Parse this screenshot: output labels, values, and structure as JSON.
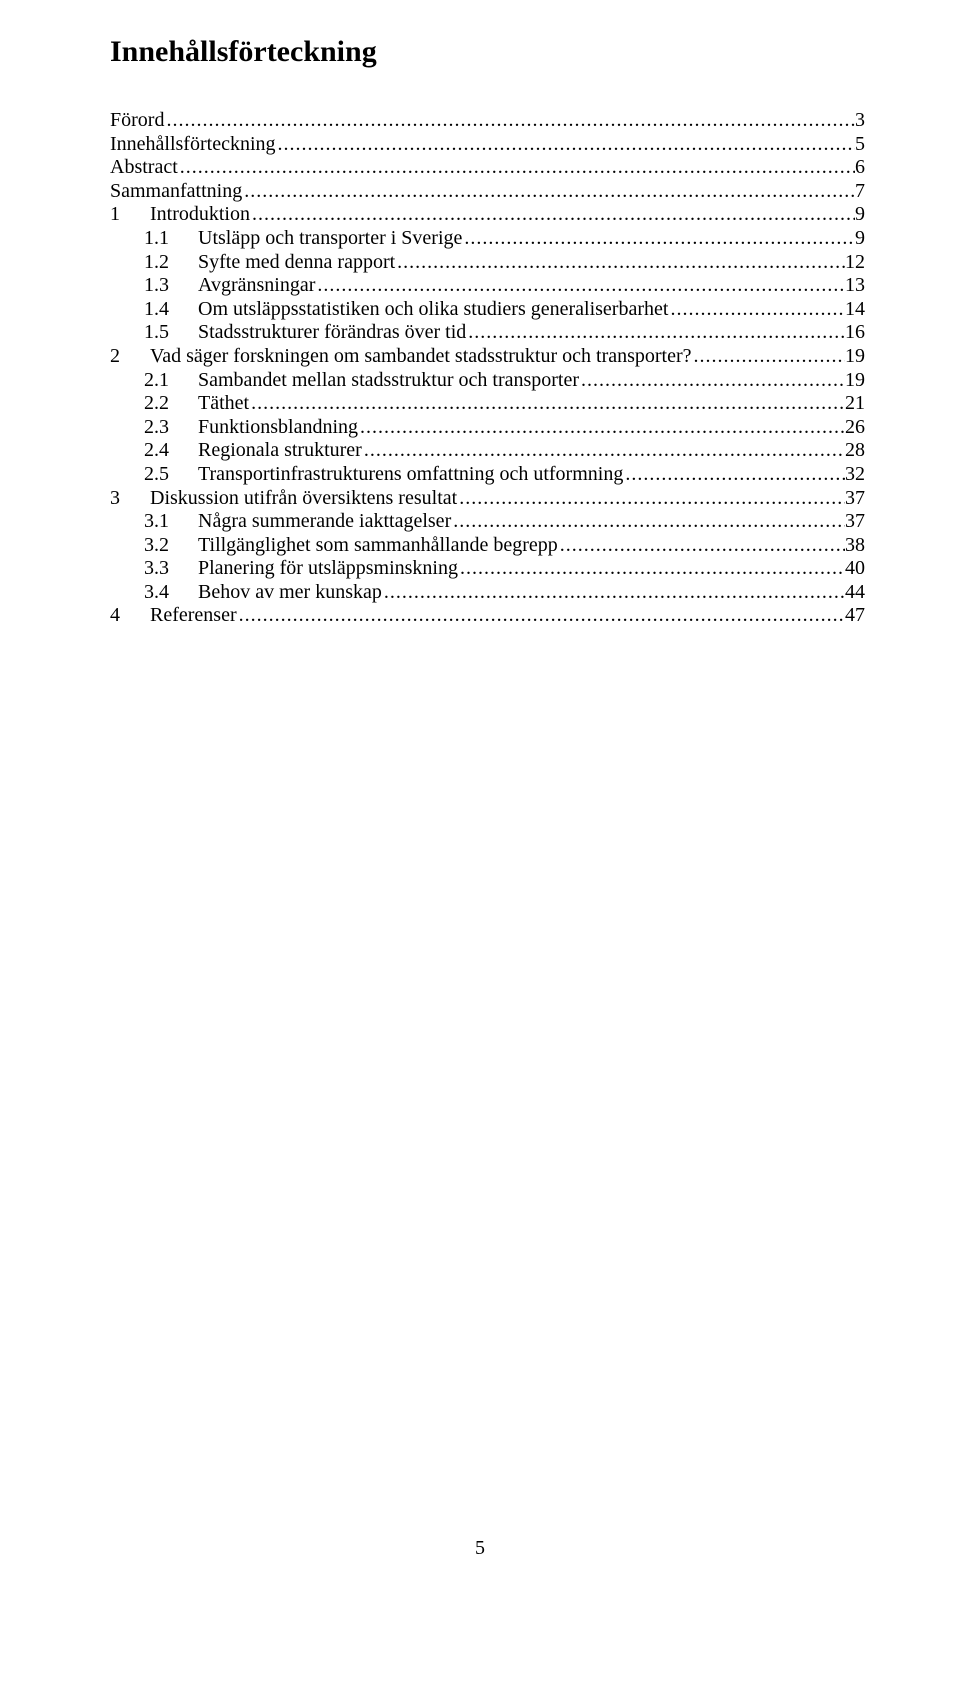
{
  "title": "Innehållsförteckning",
  "page_number": "5",
  "toc": [
    {
      "level": 0,
      "num": "",
      "text": "Förord",
      "page": "3"
    },
    {
      "level": 0,
      "num": "",
      "text": "Innehållsförteckning",
      "page": "5"
    },
    {
      "level": 0,
      "num": "",
      "text": "Abstract",
      "page": "6"
    },
    {
      "level": 0,
      "num": "",
      "text": "Sammanfattning",
      "page": "7"
    },
    {
      "level": 1,
      "num": "1",
      "text": "Introduktion",
      "page": "9"
    },
    {
      "level": 2,
      "num": "1.1",
      "text": "Utsläpp och transporter i Sverige",
      "page": "9"
    },
    {
      "level": 2,
      "num": "1.2",
      "text": "Syfte med denna rapport",
      "page": "12"
    },
    {
      "level": 2,
      "num": "1.3",
      "text": "Avgränsningar",
      "page": "13"
    },
    {
      "level": 2,
      "num": "1.4",
      "text": "Om utsläppsstatistiken och olika studiers generaliserbarhet",
      "page": "14"
    },
    {
      "level": 2,
      "num": "1.5",
      "text": "Stadsstrukturer förändras över tid",
      "page": "16"
    },
    {
      "level": 1,
      "num": "2",
      "text": "Vad säger forskningen om sambandet stadsstruktur och transporter?",
      "page": "19"
    },
    {
      "level": 2,
      "num": "2.1",
      "text": "Sambandet mellan stadsstruktur och transporter",
      "page": "19"
    },
    {
      "level": 2,
      "num": "2.2",
      "text": "Täthet",
      "page": "21"
    },
    {
      "level": 2,
      "num": "2.3",
      "text": "Funktionsblandning",
      "page": "26"
    },
    {
      "level": 2,
      "num": "2.4",
      "text": "Regionala strukturer",
      "page": "28"
    },
    {
      "level": 2,
      "num": "2.5",
      "text": "Transportinfrastrukturens omfattning och utformning",
      "page": "32"
    },
    {
      "level": 1,
      "num": "3",
      "text": "Diskussion utifrån översiktens resultat",
      "page": "37"
    },
    {
      "level": 2,
      "num": "3.1",
      "text": "Några summerande iakttagelser",
      "page": "37"
    },
    {
      "level": 2,
      "num": "3.2",
      "text": "Tillgänglighet som sammanhållande begrepp",
      "page": "38"
    },
    {
      "level": 2,
      "num": "3.3",
      "text": "Planering för utsläppsminskning",
      "page": "40"
    },
    {
      "level": 2,
      "num": "3.4",
      "text": "Behov av mer kunskap",
      "page": "44"
    },
    {
      "level": 1,
      "num": "4",
      "text": "Referenser",
      "page": "47"
    }
  ]
}
